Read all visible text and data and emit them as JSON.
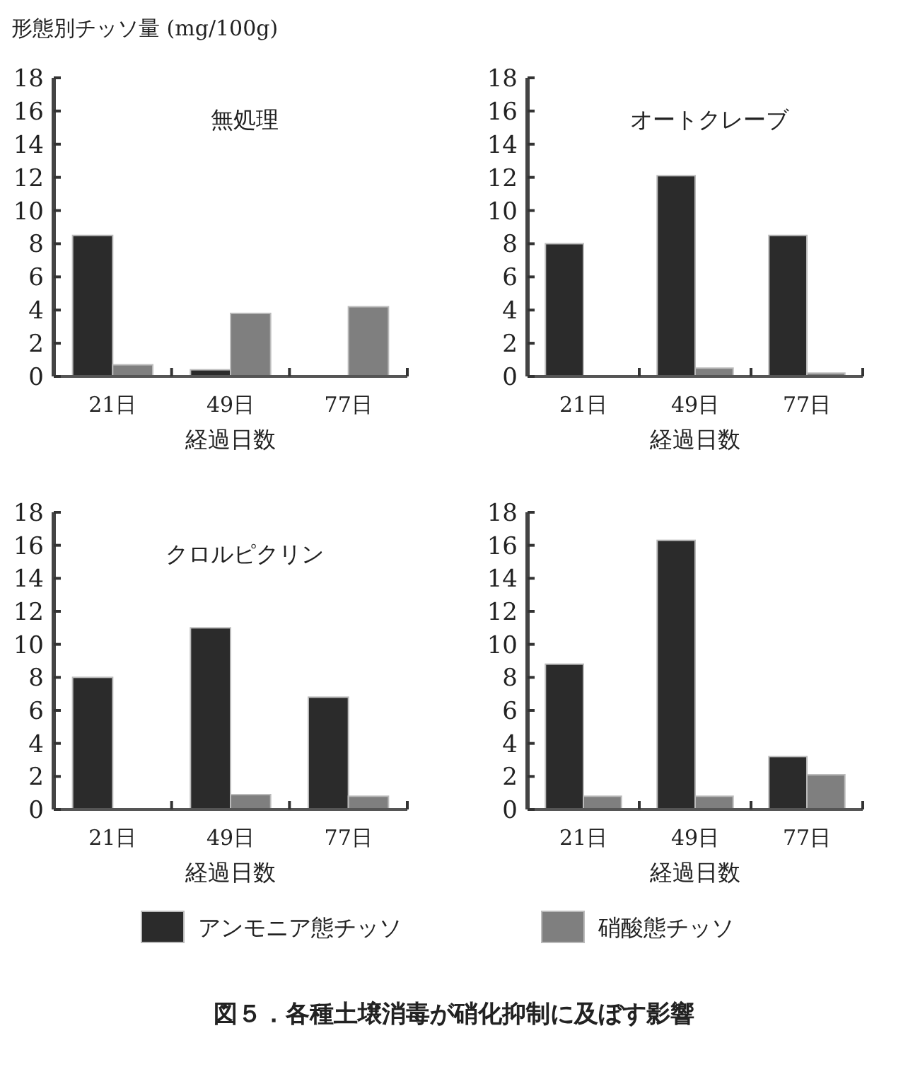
{
  "chart_data": [
    {
      "type": "bar",
      "title": "無処理",
      "ylabel": "形態別チッソ量 (mg/100g)",
      "xlabel": "経過日数",
      "categories": [
        "21日",
        "49日",
        "77日"
      ],
      "ylim": [
        0,
        18
      ],
      "yticks": [
        0,
        2,
        4,
        6,
        8,
        10,
        12,
        14,
        16,
        18
      ],
      "grid": false,
      "legend": "bottom",
      "annotations": [
        "図５．各種土壌消毒が硝化抑制に及ぼす影響"
      ],
      "series": [
        {
          "name": "アンモニア態チッソ",
          "color": "#2b2b2b",
          "values": [
            8.5,
            0.4,
            0
          ]
        },
        {
          "name": "硝酸態チッソ",
          "color": "#7f7f7f",
          "values": [
            0.7,
            3.8,
            4.2
          ]
        }
      ]
    },
    {
      "type": "bar",
      "title": "オートクレーブ",
      "xlabel": "経過日数",
      "categories": [
        "21日",
        "49日",
        "77日"
      ],
      "ylim": [
        0,
        18
      ],
      "yticks": [
        0,
        2,
        4,
        6,
        8,
        10,
        12,
        14,
        16,
        18
      ],
      "grid": false,
      "series": [
        {
          "color": "#2b2b2b",
          "values": [
            8.0,
            12.1,
            8.5
          ]
        },
        {
          "color": "#7f7f7f",
          "values": [
            0,
            0.5,
            0.2
          ]
        }
      ]
    },
    {
      "type": "bar",
      "title": "クロルピクリン",
      "xlabel": "経過日数",
      "categories": [
        "21日",
        "49日",
        "77日"
      ],
      "ylim": [
        0,
        18
      ],
      "yticks": [
        0,
        2,
        4,
        6,
        8,
        10,
        12,
        14,
        16,
        18
      ],
      "grid": false,
      "series": [
        {
          "color": "#2b2b2b",
          "values": [
            8.0,
            11.0,
            6.8
          ]
        },
        {
          "color": "#7f7f7f",
          "values": [
            0,
            0.9,
            0.8
          ]
        }
      ]
    },
    {
      "type": "bar",
      "xlabel": "経過日数",
      "categories": [
        "21日",
        "49日",
        "77日"
      ],
      "ylim": [
        0,
        18
      ],
      "yticks": [
        0,
        2,
        4,
        6,
        8,
        10,
        12,
        14,
        16,
        18
      ],
      "grid": false,
      "series": [
        {
          "color": "#2b2b2b",
          "values": [
            8.8,
            16.3,
            3.2
          ]
        },
        {
          "color": "#7f7f7f",
          "values": [
            0.8,
            0.8,
            2.1
          ]
        }
      ]
    }
  ]
}
